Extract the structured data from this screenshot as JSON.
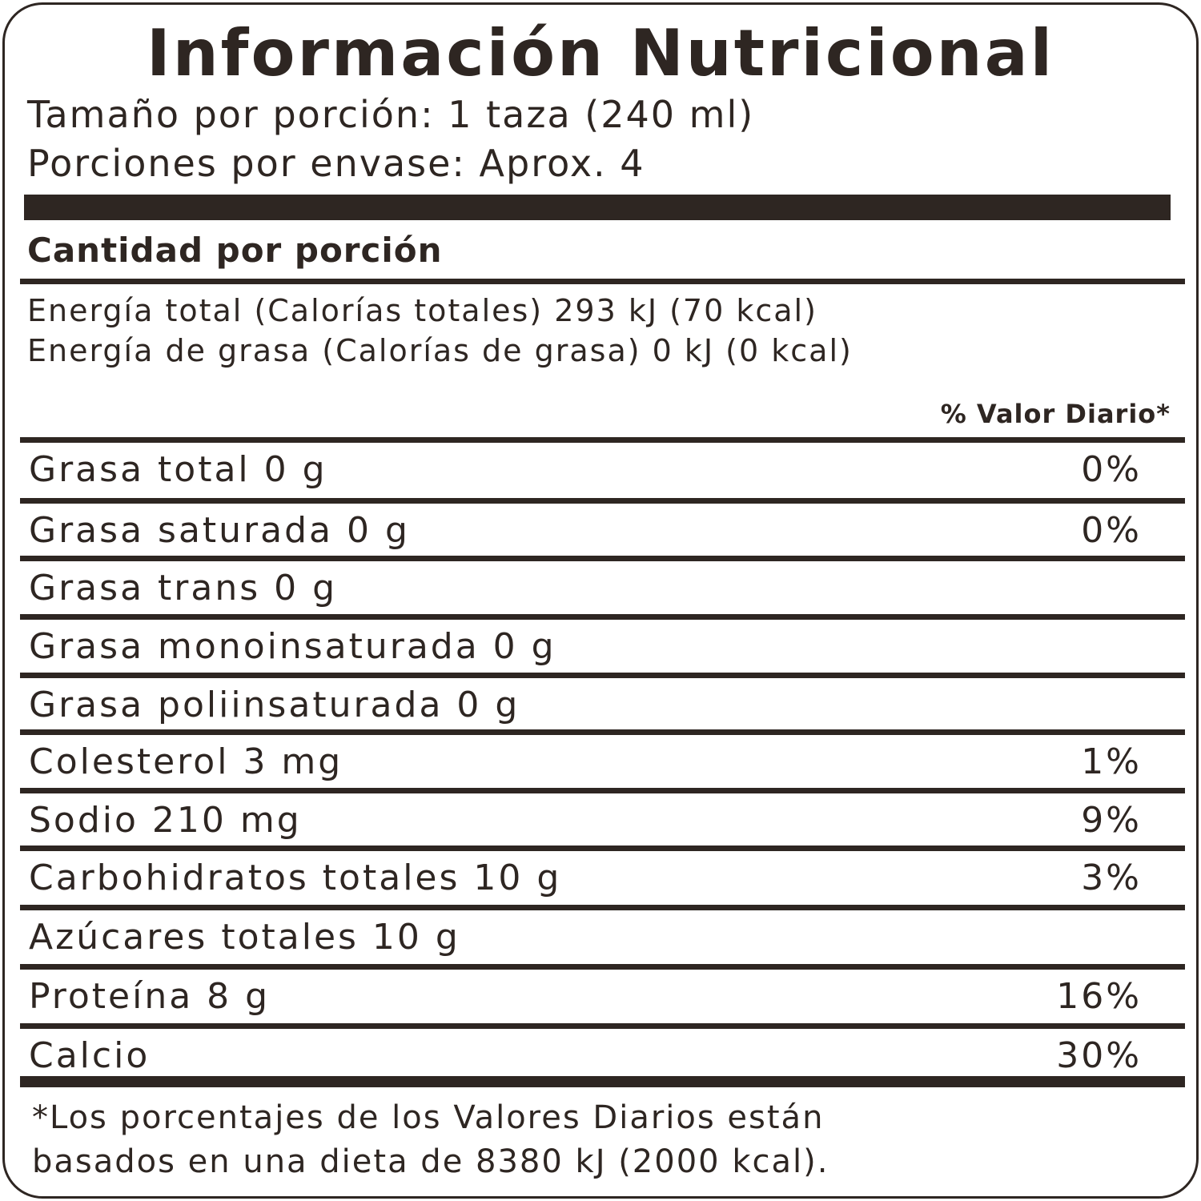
{
  "title": "Información Nutricional",
  "serving_size": "Tamaño por porción: 1 taza (240 ml)",
  "servings_per_container": "Porciones por envase: Aprox. 4",
  "amount_header": "Cantidad por porción",
  "energy_total": "Energía total (Calorías totales) 293 kJ (70 kcal)",
  "energy_fat": "Energía de grasa (Calorías de grasa) 0 kJ (0 kcal)",
  "daily_value_header": "% Valor Diario*",
  "nutrients": [
    {
      "label": "Grasa total  0 g",
      "dv": "0%"
    },
    {
      "label": "Grasa saturada 0 g",
      "dv": "0%"
    },
    {
      "label": "Grasa trans 0 g",
      "dv": ""
    },
    {
      "label": "Grasa monoinsaturada 0 g",
      "dv": ""
    },
    {
      "label": "Grasa poliinsaturada 0 g",
      "dv": ""
    },
    {
      "label": "Colesterol  3 mg",
      "dv": "1%"
    },
    {
      "label": "Sodio 210 mg",
      "dv": "9%"
    },
    {
      "label": "Carbohidratos totales 10 g",
      "dv": "3%"
    },
    {
      "label": "Azúcares totales 10 g",
      "dv": ""
    },
    {
      "label": "Proteína 8 g",
      "dv": "16%"
    },
    {
      "label": "Calcio",
      "dv": "30%"
    }
  ],
  "footnote_line1": "*Los porcentajes de los Valores Diarios están",
  "footnote_line2": "basados en una dieta de 8380 kJ (2000 kcal).",
  "colors": {
    "ink": "#2e2622",
    "background": "#ffffff"
  }
}
